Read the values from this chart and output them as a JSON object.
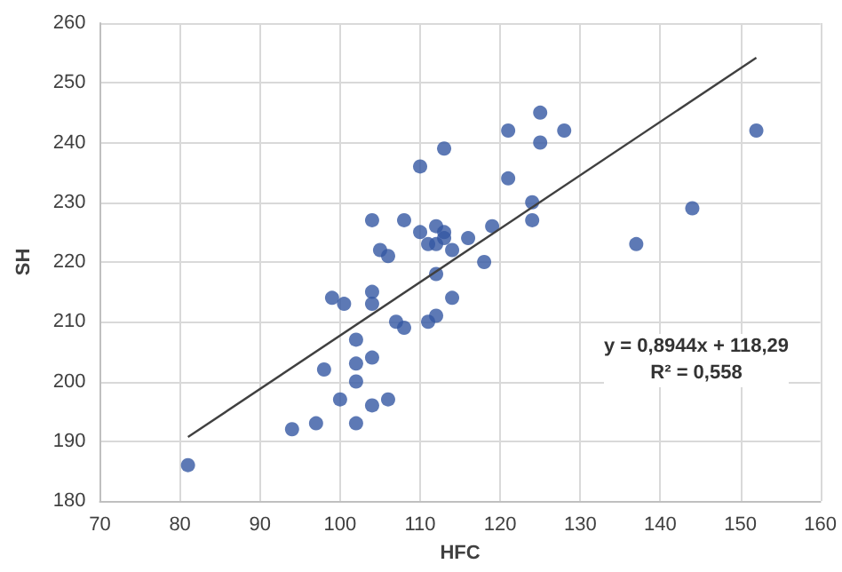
{
  "chart_data": {
    "type": "scatter",
    "xlabel": "HFC",
    "ylabel": "SH",
    "xlim": [
      70,
      160
    ],
    "xticks": [
      70,
      80,
      90,
      100,
      110,
      120,
      130,
      140,
      150,
      160
    ],
    "ylim": [
      180,
      260
    ],
    "yticks": [
      180,
      190,
      200,
      210,
      220,
      230,
      240,
      250,
      260
    ],
    "grid": true,
    "marker": "circle",
    "annotations": [
      "y = 0,8944x + 118,29",
      "R² = 0,558"
    ],
    "series": [
      {
        "color": "#3557a3",
        "x": [
          81,
          94,
          97,
          98,
          99,
          100,
          100.5,
          102,
          102,
          102,
          102,
          104,
          104,
          104,
          104,
          104,
          105,
          106,
          106,
          107,
          108,
          108,
          110,
          110,
          111,
          111,
          112,
          112,
          112,
          112,
          113,
          113,
          113,
          114,
          114,
          116,
          118,
          119,
          121,
          121,
          124,
          124,
          125,
          125,
          128,
          137,
          144,
          152
        ],
        "values": [
          186,
          192,
          193,
          202,
          214,
          197,
          213,
          207,
          203,
          200,
          193,
          227,
          215,
          213,
          204,
          196,
          222,
          221,
          197,
          210,
          227,
          209,
          236,
          225,
          223,
          210,
          211,
          226,
          223,
          218,
          239,
          225,
          224,
          222,
          214,
          224,
          220,
          226,
          234,
          242,
          230,
          227,
          245,
          240,
          242,
          223,
          229,
          242
        ]
      },
      {
        "type": "line",
        "color": "#404040",
        "marker": "none",
        "x": [
          81,
          152
        ],
        "values": [
          190.7,
          254.2
        ]
      }
    ]
  }
}
